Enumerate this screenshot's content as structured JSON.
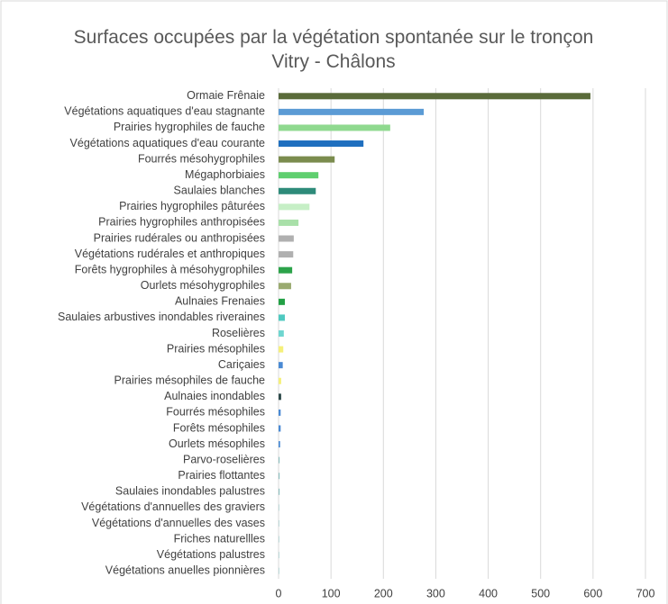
{
  "chart_data": {
    "type": "hbar",
    "title": "Surfaces occupées par la végétation spontanée sur le tronçon Vitry - Châlons",
    "categories": [
      "Ormaie Frênaie",
      "Végétations aquatiques d'eau stagnante",
      "Prairies hygrophiles de fauche",
      "Végétations aquatiques d'eau courante",
      "Fourrés mésohygrophiles",
      "Mégaphorbiaies",
      "Saulaies blanches",
      "Prairies hygrophiles pâturées",
      "Prairies hygrophiles anthropisées",
      "Prairies rudérales ou anthropisées",
      "Végétations rudérales et anthropiques",
      "Forêts hygrophiles à mésohygrophiles",
      "Ourlets mésohygrophiles",
      "Aulnaies Frenaies",
      "Saulaies arbustives inondables riveraines",
      "Roselières",
      "Prairies mésophiles",
      "Cariçaies",
      "Prairies mésophiles de fauche",
      "Aulnaies inondables",
      "Fourrés mésophiles",
      "Forêts mésophiles",
      "Ourlets mésophiles",
      "Parvo-roselières",
      "Prairies flottantes",
      "Saulaies inondables palustres",
      "Végétations d'annuelles des graviers",
      "Végétations d'annuelles des vases",
      "Friches naturellles",
      "Végétations palustres",
      "Végétations anuelles pionnières"
    ],
    "values": [
      595,
      277,
      213,
      162,
      107,
      76,
      71,
      59,
      38,
      29,
      28,
      26,
      24,
      12,
      12,
      10,
      9,
      8,
      5,
      5,
      4,
      4,
      3,
      2,
      2,
      2,
      1,
      1,
      1,
      1,
      1
    ],
    "colors": [
      "#5a6b3a",
      "#5b9bd5",
      "#8fd98f",
      "#1f6fbf",
      "#7b8c4e",
      "#5fcf6f",
      "#2e8b7a",
      "#c6efc6",
      "#a9e0a9",
      "#b0b0b0",
      "#b0b0b0",
      "#2ca34a",
      "#9aaa70",
      "#22a045",
      "#4fc9c0",
      "#6fd6d0",
      "#f5f07a",
      "#4a8ad4",
      "#f5f07a",
      "#2e4a4a",
      "#4a8ad4",
      "#4a8ad4",
      "#4a8ad4",
      "#8fc0c0",
      "#8fc0c0",
      "#8fc0c0",
      "#8fc0c0",
      "#8fc0c0",
      "#8fc0c0",
      "#8fc0c0",
      "#8fc0c0"
    ],
    "xlim": [
      0,
      700
    ],
    "xticks": [
      0,
      100,
      200,
      300,
      400,
      500,
      600,
      700
    ],
    "grid": true
  }
}
